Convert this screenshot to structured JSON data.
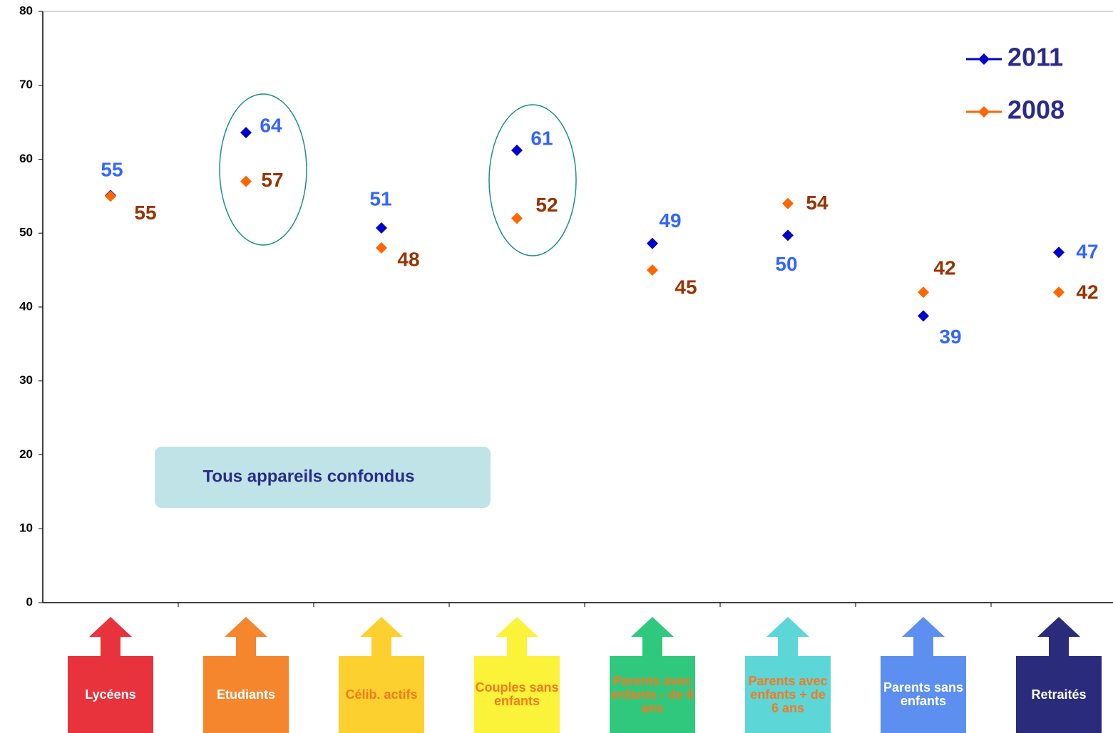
{
  "chart_data": {
    "type": "line",
    "categories": [
      "Lycéens",
      "Etudiants",
      "Célib. actifs",
      "Couples sans enfants",
      "Parents avec enfants - de 6 ans",
      "Parents avec enfants + de 6 ans",
      "Parents sans enfants",
      "Retraités"
    ],
    "category_colors": [
      "#e8323c",
      "#f5862e",
      "#fcd12f",
      "#fbf23a",
      "#30c87c",
      "#5cd6d6",
      "#5c8ff0",
      "#2b2b7c"
    ],
    "category_text_colors": [
      "#ffffff",
      "#ffffff",
      "#f57a1f",
      "#f57a1f",
      "#f57a1f",
      "#f57a1f",
      "#ffffff",
      "#ffffff"
    ],
    "series": [
      {
        "name": "2011",
        "color": "#0000cc",
        "label_color": "#3366ff",
        "values": [
          55.1,
          63.6,
          50.7,
          61.2,
          48.6,
          49.7,
          38.8,
          47.4
        ],
        "value_labels": [
          "55",
          "64",
          "51",
          "61",
          "49",
          "50",
          "39",
          "47"
        ]
      },
      {
        "name": "2008",
        "color": "#ff6600",
        "label_color": "#993300",
        "values": [
          55,
          57,
          48,
          52,
          45,
          54,
          42,
          42
        ]
      }
    ],
    "ylim": [
      0,
      80
    ],
    "yticks": [
      0,
      10,
      20,
      30,
      40,
      50,
      60,
      70,
      80
    ],
    "annotation": "Tous appareils confondus",
    "legend": "top-right"
  }
}
